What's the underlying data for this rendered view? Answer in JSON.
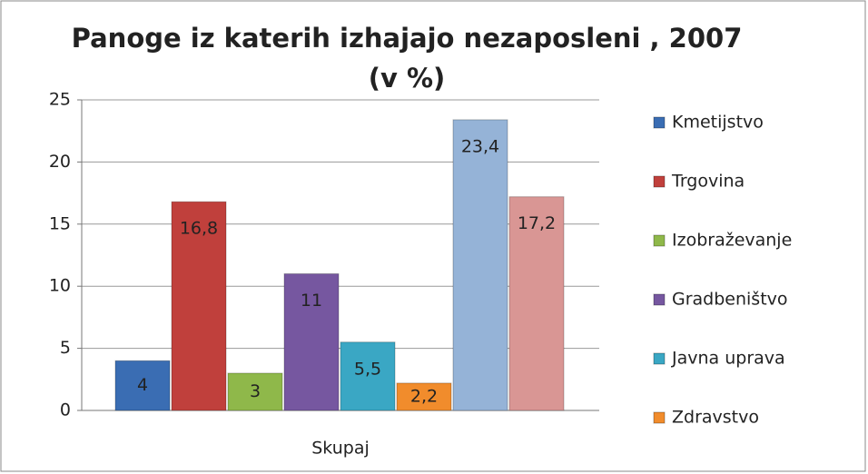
{
  "chart_data": {
    "type": "bar",
    "title": "Panoge iz katerih izhajajo nezaposleni , 2007",
    "subtitle": "(v %)",
    "categories": [
      "Skupaj"
    ],
    "series": [
      {
        "name": "Kmetijstvo",
        "color": "#3a6db3",
        "values": [
          4
        ]
      },
      {
        "name": "Trgovina",
        "color": "#c0403c",
        "values": [
          16.8
        ],
        "value_labels": [
          "16,8"
        ]
      },
      {
        "name": "Izobraževanje",
        "color": "#8fb84a",
        "values": [
          3
        ]
      },
      {
        "name": "Gradbeništvo",
        "color": "#7657a0",
        "values": [
          11
        ]
      },
      {
        "name": "Javna uprava",
        "color": "#3aa7c4",
        "values": [
          5.5
        ],
        "value_labels": [
          "5,5"
        ]
      },
      {
        "name": "Zdravstvo",
        "color": "#f18c2c",
        "values": [
          2.2
        ],
        "value_labels": [
          "2,2"
        ]
      },
      {
        "color": "#95b3d7",
        "values": [
          23.4
        ],
        "value_labels": [
          "23,4"
        ]
      },
      {
        "color": "#d99694",
        "values": [
          17.2
        ],
        "value_labels": [
          "17,2"
        ]
      }
    ],
    "ylim": [
      0,
      25
    ],
    "yticks": [
      0,
      5,
      10,
      15,
      20,
      25
    ],
    "grid": true,
    "legend": "right"
  }
}
